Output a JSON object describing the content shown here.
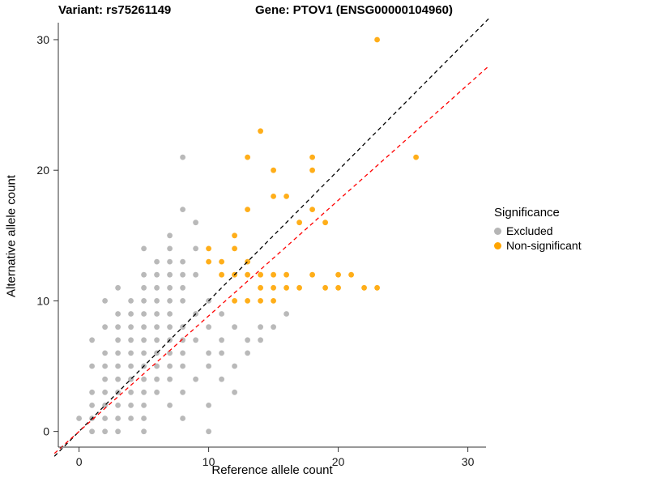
{
  "titles": {
    "variant": "Variant: rs75261149",
    "gene": "Gene: PTOV1 (ENSG00000104960)"
  },
  "chart_data": {
    "type": "scatter",
    "xlabel": "Reference allele count",
    "ylabel": "Alternative allele count",
    "xlim": [
      -1.6,
      31.4
    ],
    "ylim": [
      -1.2,
      31.3
    ],
    "xticks": [
      0,
      10,
      20,
      30
    ],
    "yticks": [
      0,
      10,
      20,
      30
    ],
    "axis_color": "#333333",
    "series": [
      {
        "name": "Excluded",
        "color": "#808080",
        "opacity": 0.55,
        "points": [
          [
            1,
            0
          ],
          [
            2,
            0
          ],
          [
            3,
            0
          ],
          [
            5,
            0
          ],
          [
            10,
            0
          ],
          [
            0,
            1
          ],
          [
            1,
            1
          ],
          [
            2,
            1
          ],
          [
            3,
            1
          ],
          [
            4,
            1
          ],
          [
            5,
            1
          ],
          [
            8,
            1
          ],
          [
            1,
            2
          ],
          [
            2,
            2
          ],
          [
            3,
            2
          ],
          [
            4,
            2
          ],
          [
            5,
            2
          ],
          [
            7,
            2
          ],
          [
            10,
            2
          ],
          [
            1,
            3
          ],
          [
            2,
            3
          ],
          [
            3,
            3
          ],
          [
            4,
            3
          ],
          [
            5,
            3
          ],
          [
            6,
            3
          ],
          [
            8,
            3
          ],
          [
            12,
            3
          ],
          [
            2,
            4
          ],
          [
            3,
            4
          ],
          [
            4,
            4
          ],
          [
            5,
            4
          ],
          [
            6,
            4
          ],
          [
            7,
            4
          ],
          [
            9,
            4
          ],
          [
            11,
            4
          ],
          [
            1,
            5
          ],
          [
            2,
            5
          ],
          [
            3,
            5
          ],
          [
            4,
            5
          ],
          [
            5,
            5
          ],
          [
            6,
            5
          ],
          [
            7,
            5
          ],
          [
            8,
            5
          ],
          [
            10,
            5
          ],
          [
            12,
            5
          ],
          [
            2,
            6
          ],
          [
            3,
            6
          ],
          [
            4,
            6
          ],
          [
            5,
            6
          ],
          [
            6,
            6
          ],
          [
            7,
            6
          ],
          [
            8,
            6
          ],
          [
            10,
            6
          ],
          [
            11,
            6
          ],
          [
            13,
            6
          ],
          [
            1,
            7
          ],
          [
            3,
            7
          ],
          [
            4,
            7
          ],
          [
            5,
            7
          ],
          [
            6,
            7
          ],
          [
            7,
            7
          ],
          [
            8,
            7
          ],
          [
            9,
            7
          ],
          [
            11,
            7
          ],
          [
            13,
            7
          ],
          [
            14,
            7
          ],
          [
            2,
            8
          ],
          [
            3,
            8
          ],
          [
            4,
            8
          ],
          [
            5,
            8
          ],
          [
            6,
            8
          ],
          [
            7,
            8
          ],
          [
            8,
            8
          ],
          [
            10,
            8
          ],
          [
            12,
            8
          ],
          [
            14,
            8
          ],
          [
            15,
            8
          ],
          [
            3,
            9
          ],
          [
            4,
            9
          ],
          [
            5,
            9
          ],
          [
            6,
            9
          ],
          [
            7,
            9
          ],
          [
            9,
            9
          ],
          [
            11,
            9
          ],
          [
            16,
            9
          ],
          [
            2,
            10
          ],
          [
            4,
            10
          ],
          [
            5,
            10
          ],
          [
            6,
            10
          ],
          [
            7,
            10
          ],
          [
            8,
            10
          ],
          [
            10,
            10
          ],
          [
            3,
            11
          ],
          [
            5,
            11
          ],
          [
            6,
            11
          ],
          [
            7,
            11
          ],
          [
            8,
            11
          ],
          [
            5,
            12
          ],
          [
            6,
            12
          ],
          [
            7,
            12
          ],
          [
            8,
            12
          ],
          [
            9,
            12
          ],
          [
            6,
            13
          ],
          [
            7,
            13
          ],
          [
            8,
            13
          ],
          [
            5,
            14
          ],
          [
            7,
            14
          ],
          [
            9,
            14
          ],
          [
            7,
            15
          ],
          [
            9,
            16
          ],
          [
            8,
            17
          ],
          [
            8,
            21
          ]
        ]
      },
      {
        "name": "Non-significant",
        "color": "#FFA500",
        "opacity": 0.9,
        "points": [
          [
            10,
            13
          ],
          [
            10,
            14
          ],
          [
            11,
            12
          ],
          [
            11,
            13
          ],
          [
            12,
            10
          ],
          [
            12,
            12
          ],
          [
            12,
            14
          ],
          [
            12,
            15
          ],
          [
            13,
            10
          ],
          [
            13,
            12
          ],
          [
            13,
            13
          ],
          [
            13,
            17
          ],
          [
            13,
            21
          ],
          [
            14,
            10
          ],
          [
            14,
            11
          ],
          [
            14,
            12
          ],
          [
            14,
            23
          ],
          [
            15,
            10
          ],
          [
            15,
            11
          ],
          [
            15,
            12
          ],
          [
            15,
            18
          ],
          [
            15,
            20
          ],
          [
            16,
            11
          ],
          [
            16,
            12
          ],
          [
            16,
            18
          ],
          [
            17,
            11
          ],
          [
            17,
            16
          ],
          [
            18,
            12
          ],
          [
            18,
            17
          ],
          [
            18,
            20
          ],
          [
            18,
            21
          ],
          [
            19,
            11
          ],
          [
            19,
            16
          ],
          [
            20,
            11
          ],
          [
            20,
            12
          ],
          [
            21,
            12
          ],
          [
            22,
            11
          ],
          [
            23,
            11
          ],
          [
            23,
            30
          ],
          [
            26,
            21
          ]
        ]
      }
    ],
    "lines": [
      {
        "name": "identity-line",
        "color": "#000000",
        "dash": "5,4",
        "slope": 1,
        "intercept": 0
      },
      {
        "name": "fitted-line",
        "color": "#FF0000",
        "dash": "5,4",
        "slope": 0.885,
        "intercept": 0
      }
    ],
    "legend": {
      "title": "Significance",
      "items": [
        {
          "label": "Excluded",
          "color": "#b5b5b5"
        },
        {
          "label": "Non-significant",
          "color": "#FFA500"
        }
      ]
    }
  }
}
